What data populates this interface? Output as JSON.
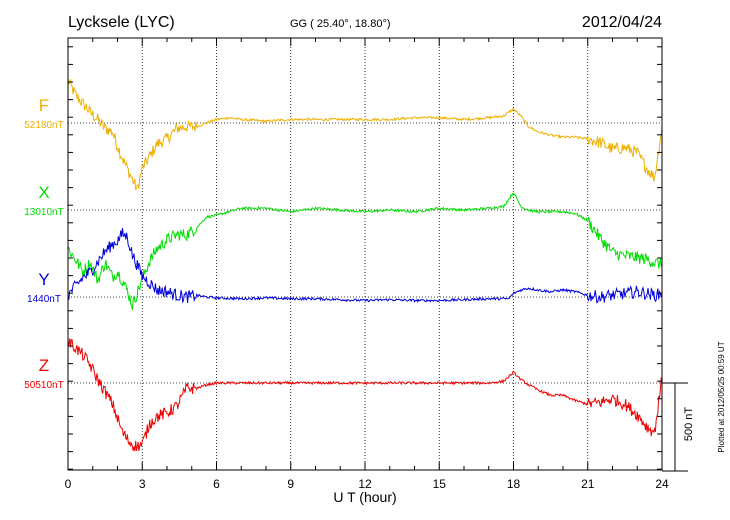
{
  "chart_data": {
    "type": "line",
    "title": "Lycksele (LYC)",
    "subtitle": "GG ( 25.40°,  18.80°)",
    "date": "2012/04/24",
    "xlabel": "U T (hour)",
    "x_ticks": [
      "0",
      "3",
      "6",
      "9",
      "12",
      "15",
      "18",
      "21",
      "24"
    ],
    "xlim": [
      0,
      24
    ],
    "scale_bar_label": "500 nT",
    "scale_bar_nT": 500,
    "side_note": "Plotted at 2012/05/25 00:59 UT",
    "grid": true,
    "series": [
      {
        "name": "F",
        "baseline_label": "52180nT",
        "baseline_nT": 52180,
        "color": "#f0b000",
        "offset_nT": [
          [
            0,
            240
          ],
          [
            0.3,
            160
          ],
          [
            0.6,
            110
          ],
          [
            0.9,
            60
          ],
          [
            1.2,
            20
          ],
          [
            1.5,
            -30
          ],
          [
            1.8,
            -50
          ],
          [
            2.0,
            -130
          ],
          [
            2.2,
            -200
          ],
          [
            2.4,
            -260
          ],
          [
            2.6,
            -320
          ],
          [
            2.8,
            -380
          ],
          [
            3.0,
            -260
          ],
          [
            3.3,
            -190
          ],
          [
            3.6,
            -120
          ],
          [
            4.0,
            -90
          ],
          [
            4.4,
            -30
          ],
          [
            4.8,
            -20
          ],
          [
            5.2,
            -20
          ],
          [
            5.6,
            0
          ],
          [
            6.0,
            20
          ],
          [
            6.5,
            30
          ],
          [
            7.0,
            20
          ],
          [
            8.0,
            10
          ],
          [
            9.0,
            20
          ],
          [
            10.0,
            20
          ],
          [
            11.0,
            20
          ],
          [
            12.0,
            20
          ],
          [
            13.0,
            20
          ],
          [
            14.0,
            30
          ],
          [
            15.0,
            30
          ],
          [
            16.0,
            20
          ],
          [
            17.0,
            30
          ],
          [
            17.6,
            40
          ],
          [
            18.0,
            80
          ],
          [
            18.3,
            40
          ],
          [
            18.6,
            -20
          ],
          [
            19.0,
            -50
          ],
          [
            19.5,
            -70
          ],
          [
            20.0,
            -80
          ],
          [
            20.5,
            -80
          ],
          [
            21.0,
            -90
          ],
          [
            21.5,
            -110
          ],
          [
            22.0,
            -150
          ],
          [
            22.5,
            -140
          ],
          [
            23.0,
            -170
          ],
          [
            23.4,
            -260
          ],
          [
            23.7,
            -310
          ],
          [
            24.0,
            -20
          ]
        ]
      },
      {
        "name": "X",
        "baseline_label": "13010nT",
        "baseline_nT": 13010,
        "color": "#00dd00",
        "offset_nT": [
          [
            0,
            -220
          ],
          [
            0.3,
            -280
          ],
          [
            0.6,
            -350
          ],
          [
            0.9,
            -300
          ],
          [
            1.2,
            -400
          ],
          [
            1.5,
            -300
          ],
          [
            1.8,
            -380
          ],
          [
            2.0,
            -350
          ],
          [
            2.2,
            -400
          ],
          [
            2.4,
            -460
          ],
          [
            2.6,
            -540
          ],
          [
            2.8,
            -470
          ],
          [
            3.0,
            -390
          ],
          [
            3.3,
            -290
          ],
          [
            3.6,
            -220
          ],
          [
            4.0,
            -170
          ],
          [
            4.4,
            -140
          ],
          [
            4.8,
            -140
          ],
          [
            5.2,
            -100
          ],
          [
            5.6,
            -40
          ],
          [
            6.0,
            -30
          ],
          [
            6.5,
            -10
          ],
          [
            7.0,
            10
          ],
          [
            8.0,
            10
          ],
          [
            9.0,
            -10
          ],
          [
            10.0,
            10
          ],
          [
            11.0,
            0
          ],
          [
            12.0,
            -10
          ],
          [
            13.0,
            0
          ],
          [
            14.0,
            -10
          ],
          [
            15.0,
            10
          ],
          [
            16.0,
            0
          ],
          [
            17.0,
            10
          ],
          [
            17.6,
            20
          ],
          [
            18.0,
            100
          ],
          [
            18.3,
            20
          ],
          [
            18.6,
            0
          ],
          [
            19.0,
            -10
          ],
          [
            19.5,
            -10
          ],
          [
            20.0,
            -10
          ],
          [
            20.5,
            -20
          ],
          [
            21.0,
            -60
          ],
          [
            21.5,
            -160
          ],
          [
            22.0,
            -240
          ],
          [
            22.5,
            -260
          ],
          [
            23.0,
            -270
          ],
          [
            23.4,
            -280
          ],
          [
            23.7,
            -300
          ],
          [
            24.0,
            -310
          ]
        ]
      },
      {
        "name": "Y",
        "baseline_label": "1440nT",
        "baseline_nT": 1440,
        "color": "#0000dd",
        "offset_nT": [
          [
            0,
            10
          ],
          [
            0.3,
            60
          ],
          [
            0.6,
            110
          ],
          [
            0.9,
            140
          ],
          [
            1.2,
            200
          ],
          [
            1.5,
            260
          ],
          [
            1.8,
            300
          ],
          [
            2.0,
            320
          ],
          [
            2.2,
            360
          ],
          [
            2.4,
            340
          ],
          [
            2.6,
            240
          ],
          [
            2.8,
            180
          ],
          [
            3.0,
            120
          ],
          [
            3.3,
            80
          ],
          [
            3.6,
            40
          ],
          [
            4.0,
            30
          ],
          [
            4.4,
            10
          ],
          [
            4.8,
            0
          ],
          [
            5.2,
            10
          ],
          [
            5.6,
            0
          ],
          [
            6.0,
            -5
          ],
          [
            7.0,
            -10
          ],
          [
            8.0,
            -5
          ],
          [
            9.0,
            -10
          ],
          [
            10.0,
            -10
          ],
          [
            11.0,
            -15
          ],
          [
            12.0,
            -20
          ],
          [
            13.0,
            -15
          ],
          [
            14.0,
            -20
          ],
          [
            15.0,
            -20
          ],
          [
            16.0,
            -15
          ],
          [
            17.0,
            -10
          ],
          [
            17.5,
            -10
          ],
          [
            17.8,
            -10
          ],
          [
            18.0,
            20
          ],
          [
            18.3,
            40
          ],
          [
            18.6,
            50
          ],
          [
            19.0,
            40
          ],
          [
            19.5,
            30
          ],
          [
            20.0,
            40
          ],
          [
            20.5,
            30
          ],
          [
            21.0,
            10
          ],
          [
            21.5,
            0
          ],
          [
            22.0,
            10
          ],
          [
            22.5,
            20
          ],
          [
            23.0,
            30
          ],
          [
            23.4,
            20
          ],
          [
            23.7,
            10
          ],
          [
            24.0,
            20
          ]
        ]
      },
      {
        "name": "Z",
        "baseline_label": "50510nT",
        "baseline_nT": 50510,
        "color": "#ee0000",
        "offset_nT": [
          [
            0,
            240
          ],
          [
            0.3,
            200
          ],
          [
            0.6,
            160
          ],
          [
            0.9,
            100
          ],
          [
            1.2,
            20
          ],
          [
            1.5,
            -50
          ],
          [
            1.8,
            -120
          ],
          [
            2.0,
            -200
          ],
          [
            2.2,
            -280
          ],
          [
            2.4,
            -320
          ],
          [
            2.6,
            -350
          ],
          [
            2.8,
            -360
          ],
          [
            3.0,
            -350
          ],
          [
            3.3,
            -230
          ],
          [
            3.6,
            -190
          ],
          [
            4.0,
            -170
          ],
          [
            4.4,
            -130
          ],
          [
            4.8,
            -30
          ],
          [
            5.2,
            -30
          ],
          [
            5.6,
            -10
          ],
          [
            6.0,
            0
          ],
          [
            6.5,
            0
          ],
          [
            7.0,
            0
          ],
          [
            8.0,
            0
          ],
          [
            9.0,
            0
          ],
          [
            10.0,
            0
          ],
          [
            11.0,
            0
          ],
          [
            12.0,
            0
          ],
          [
            13.0,
            0
          ],
          [
            14.0,
            0
          ],
          [
            15.0,
            0
          ],
          [
            16.0,
            0
          ],
          [
            17.0,
            0
          ],
          [
            17.6,
            10
          ],
          [
            18.0,
            60
          ],
          [
            18.3,
            20
          ],
          [
            18.6,
            -10
          ],
          [
            19.0,
            -40
          ],
          [
            19.5,
            -70
          ],
          [
            20.0,
            -70
          ],
          [
            20.5,
            -100
          ],
          [
            21.0,
            -120
          ],
          [
            21.5,
            -110
          ],
          [
            22.0,
            -90
          ],
          [
            22.5,
            -120
          ],
          [
            23.0,
            -180
          ],
          [
            23.4,
            -250
          ],
          [
            23.7,
            -280
          ],
          [
            24.0,
            30
          ]
        ]
      }
    ]
  }
}
